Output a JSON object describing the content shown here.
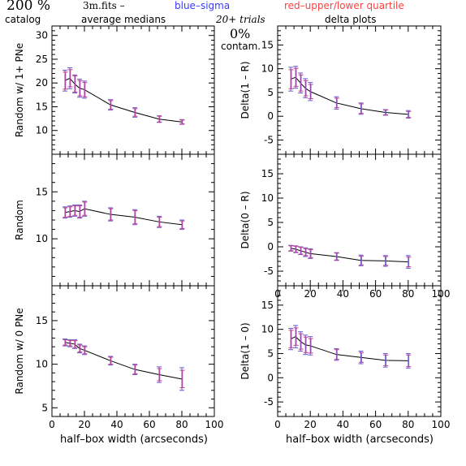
{
  "header": {
    "big_label": "200  %",
    "file_label": "3m.fits  –",
    "blue_legend": "blue–sigma",
    "red_legend": "red–upper/lower quartile",
    "catalog_label": "catalog",
    "medians_label": "average medians",
    "trials_label": "20+ trials",
    "delta_label": "delta plots",
    "contam_pct": "0%",
    "contam_label": "contam.",
    "colors": {
      "blue": "#3a3aff",
      "red": "#ff4040",
      "median_line": "#000000",
      "err_a": "#6a5acd",
      "err_b": "#c0408a"
    }
  },
  "xlabel": "half–box width (arcseconds)",
  "chart_data": [
    {
      "type": "line",
      "panel": "top-left",
      "ylabel": "Random w/ 1+ PNe",
      "xlim": [
        0,
        100
      ],
      "ylim": [
        5,
        32
      ],
      "xticks": [
        0,
        20,
        40,
        60,
        80,
        100
      ],
      "yticks": [
        10,
        15,
        20,
        25,
        30
      ],
      "xticklabels_shown": false,
      "x": [
        8,
        11,
        14,
        17,
        20,
        36,
        51,
        66,
        80
      ],
      "y": [
        20.5,
        21.0,
        19.8,
        18.9,
        18.6,
        15.4,
        13.8,
        12.4,
        11.8
      ],
      "err_sigma": [
        2.2,
        2.2,
        1.9,
        1.9,
        1.8,
        1.1,
        1.0,
        0.7,
        0.5
      ],
      "err_quart": [
        1.8,
        1.8,
        1.7,
        1.6,
        1.5,
        0.9,
        0.8,
        0.6,
        0.4
      ]
    },
    {
      "type": "line",
      "panel": "top-right",
      "ylabel": "Delta(1 – R)",
      "xlim": [
        0,
        100
      ],
      "ylim": [
        -8,
        19
      ],
      "xticks": [
        0,
        20,
        40,
        60,
        80,
        100
      ],
      "yticks": [
        -5,
        0,
        5,
        10,
        15
      ],
      "xticklabels_shown": false,
      "x": [
        8,
        11,
        14,
        17,
        20,
        36,
        51,
        66,
        80
      ],
      "y": [
        7.8,
        8.2,
        7.0,
        5.9,
        5.2,
        2.8,
        1.6,
        0.8,
        0.4
      ],
      "err_sigma": [
        2.5,
        2.3,
        2.1,
        2.0,
        1.9,
        1.3,
        1.2,
        0.6,
        0.8
      ],
      "err_quart": [
        2.0,
        1.9,
        1.7,
        1.6,
        1.5,
        1.0,
        1.0,
        0.5,
        0.6
      ]
    },
    {
      "type": "line",
      "panel": "middle-left",
      "ylabel": "Random",
      "xlim": [
        0,
        100
      ],
      "ylim": [
        5,
        19
      ],
      "xticks": [
        0,
        20,
        40,
        60,
        80,
        100
      ],
      "yticks": [
        10,
        15
      ],
      "xticklabels_shown": false,
      "x": [
        8,
        11,
        14,
        17,
        20,
        36,
        51,
        66,
        80
      ],
      "y": [
        12.8,
        12.9,
        13.0,
        12.9,
        13.2,
        12.6,
        12.3,
        11.8,
        11.5
      ],
      "err_sigma": [
        0.6,
        0.6,
        0.6,
        0.7,
        0.8,
        0.7,
        0.8,
        0.6,
        0.5
      ],
      "err_quart": [
        0.5,
        0.5,
        0.5,
        0.6,
        0.7,
        0.6,
        0.7,
        0.5,
        0.4
      ]
    },
    {
      "type": "line",
      "panel": "middle-right",
      "ylabel": "Delta(0 – R)",
      "xlim": [
        0,
        100
      ],
      "ylim": [
        -8,
        19
      ],
      "xticks": [
        0,
        20,
        40,
        60,
        80,
        100
      ],
      "yticks": [
        -5,
        0,
        5,
        10,
        15
      ],
      "xticklabels_shown": true,
      "x": [
        8,
        11,
        14,
        17,
        20,
        36,
        51,
        66,
        80
      ],
      "y": [
        -0.3,
        -0.5,
        -0.8,
        -1.1,
        -1.4,
        -2.0,
        -2.8,
        -2.9,
        -3.1
      ],
      "err_sigma": [
        0.6,
        0.7,
        0.8,
        0.9,
        1.0,
        0.8,
        1.1,
        1.1,
        1.3
      ],
      "err_quart": [
        0.5,
        0.6,
        0.7,
        0.7,
        0.8,
        0.7,
        0.9,
        0.9,
        1.0
      ]
    },
    {
      "type": "line",
      "panel": "bottom-left",
      "ylabel": "Random w/ 0 PNe",
      "xlim": [
        0,
        100
      ],
      "ylim": [
        4,
        19
      ],
      "xticks": [
        0,
        20,
        40,
        60,
        80,
        100
      ],
      "yticks": [
        5,
        10,
        15
      ],
      "xticklabels_shown": true,
      "x": [
        8,
        11,
        14,
        17,
        20,
        36,
        51,
        66,
        80
      ],
      "y": [
        12.5,
        12.4,
        12.3,
        11.8,
        11.6,
        10.4,
        9.4,
        8.8,
        8.3
      ],
      "err_sigma": [
        0.4,
        0.4,
        0.5,
        0.5,
        0.5,
        0.5,
        0.6,
        0.9,
        1.3
      ],
      "err_quart": [
        0.3,
        0.3,
        0.4,
        0.4,
        0.4,
        0.4,
        0.5,
        0.7,
        1.0
      ]
    },
    {
      "type": "line",
      "panel": "bottom-right",
      "ylabel": "Delta(1 – 0)",
      "xlim": [
        0,
        100
      ],
      "ylim": [
        -8,
        19
      ],
      "xticks": [
        0,
        20,
        40,
        60,
        80,
        100
      ],
      "yticks": [
        -5,
        0,
        5,
        10,
        15
      ],
      "xticklabels_shown": true,
      "x": [
        8,
        11,
        14,
        17,
        20,
        36,
        51,
        66,
        80
      ],
      "y": [
        8.0,
        8.5,
        7.5,
        6.8,
        6.6,
        4.8,
        4.2,
        3.6,
        3.5
      ],
      "err_sigma": [
        2.2,
        2.3,
        2.0,
        2.0,
        1.9,
        1.2,
        1.3,
        1.4,
        1.5
      ],
      "err_quart": [
        1.8,
        1.8,
        1.6,
        1.6,
        1.5,
        1.0,
        1.0,
        1.1,
        1.2
      ]
    }
  ]
}
